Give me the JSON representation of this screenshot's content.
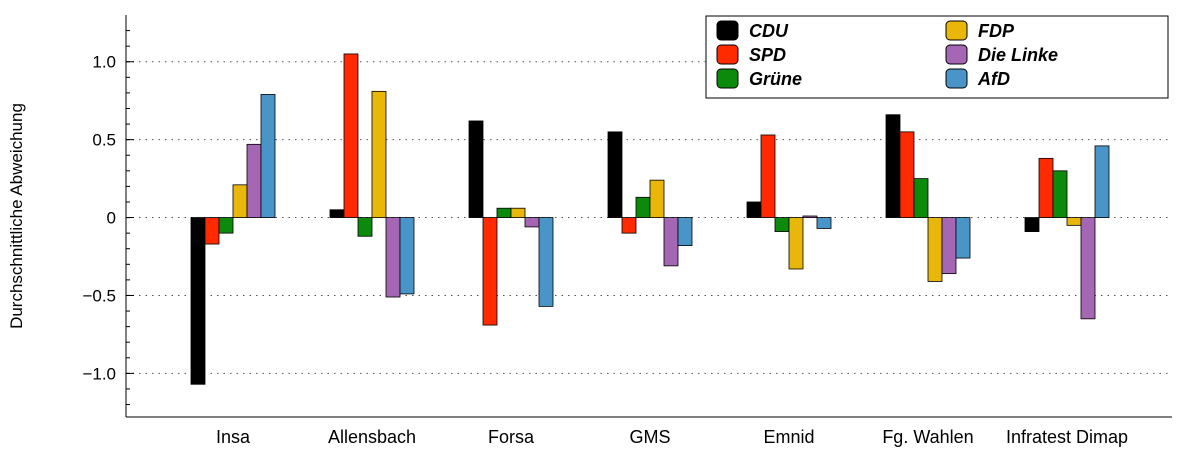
{
  "chart_data": {
    "type": "bar",
    "title": "",
    "xlabel": "",
    "ylabel": "Durchschnittliche Abweichung",
    "ylim": [
      -1.28,
      1.3
    ],
    "yticks": [
      -1.0,
      -0.5,
      0,
      0.5,
      1.0
    ],
    "ytick_labels": [
      "−1.0",
      "−0.5",
      "0",
      "0.5",
      "1.0"
    ],
    "grid": "horizontal dotted at major ticks",
    "legend_position": "top-right",
    "categories": [
      "Insa",
      "Allensbach",
      "Forsa",
      "GMS",
      "Emnid",
      "Fg. Wahlen",
      "Infratest Dimap"
    ],
    "series": [
      {
        "name": "CDU",
        "color": "#000000",
        "values": [
          -1.07,
          0.05,
          0.62,
          0.55,
          0.1,
          0.66,
          -0.09
        ]
      },
      {
        "name": "SPD",
        "color": "#ff2a00",
        "values": [
          -0.17,
          1.05,
          -0.69,
          -0.1,
          0.53,
          0.55,
          0.38
        ]
      },
      {
        "name": "Grüne",
        "color": "#0b8a0b",
        "values": [
          -0.1,
          -0.12,
          0.06,
          0.13,
          -0.09,
          0.25,
          0.3
        ]
      },
      {
        "name": "FDP",
        "color": "#e8b70a",
        "values": [
          0.21,
          0.81,
          0.06,
          0.24,
          -0.33,
          -0.41,
          -0.05
        ]
      },
      {
        "name": "Die Linke",
        "color": "#a566b3",
        "values": [
          0.47,
          -0.51,
          -0.06,
          -0.31,
          0.01,
          -0.36,
          -0.65
        ]
      },
      {
        "name": "AfD",
        "color": "#4a95c8",
        "values": [
          0.79,
          -0.49,
          -0.57,
          -0.18,
          -0.07,
          -0.26,
          0.46
        ]
      }
    ]
  }
}
